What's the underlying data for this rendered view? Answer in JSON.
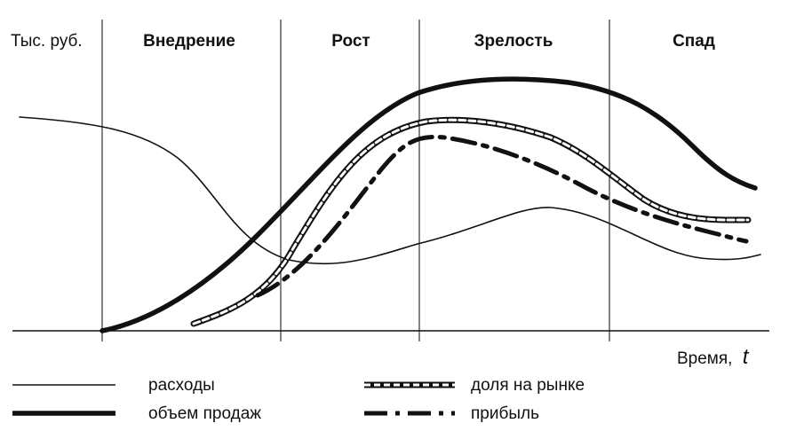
{
  "axes": {
    "y_label": "Тыс. руб.",
    "x_label": "Время,",
    "x_symbol": "t"
  },
  "stages": [
    {
      "label": "Внедрение"
    },
    {
      "label": "Рост"
    },
    {
      "label": "Зрелость"
    },
    {
      "label": "Спад"
    }
  ],
  "legend": [
    {
      "label": "расходы",
      "style": "thin-solid"
    },
    {
      "label": "объем продаж",
      "style": "thick-solid"
    },
    {
      "label": "доля на рынке",
      "style": "double-dashed"
    },
    {
      "label": "прибыль",
      "style": "dash-dot"
    }
  ],
  "colors": {
    "line": "#111111",
    "background": "#ffffff"
  }
}
